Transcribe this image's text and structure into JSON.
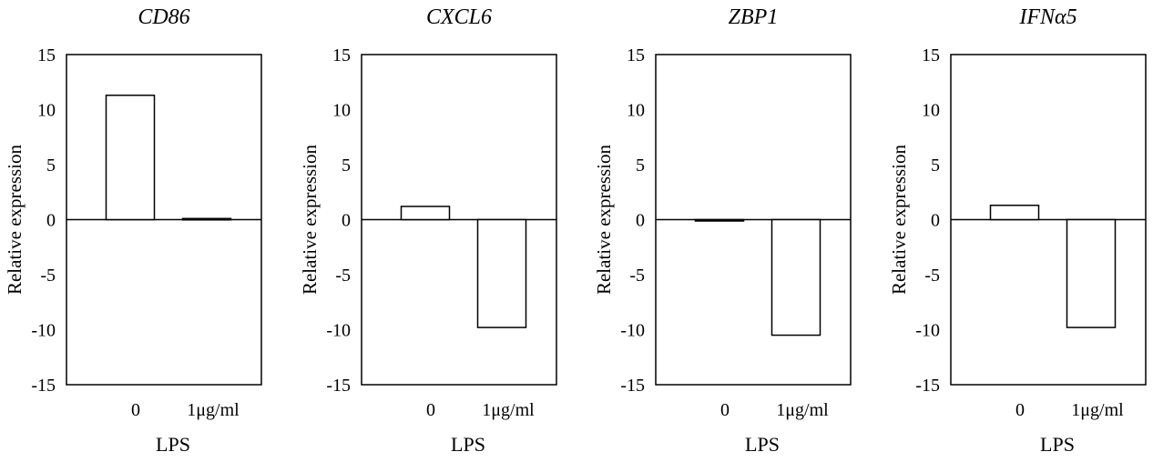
{
  "chart_data": [
    {
      "type": "bar",
      "title": "CD86",
      "xlabel": "LPS",
      "ylabel": "Relative expression",
      "ylim": [
        -15,
        15
      ],
      "yticks": [
        15,
        10,
        5,
        0,
        -5,
        -10,
        -15
      ],
      "ytick_labels": [
        "15",
        "10",
        "5",
        "0",
        "-5",
        "-10",
        "-15"
      ],
      "categories": [
        "0",
        "1μg/ml"
      ],
      "values": [
        11.3,
        0.1
      ],
      "grid": false
    },
    {
      "type": "bar",
      "title": "CXCL6",
      "xlabel": "LPS",
      "ylabel": "Relative expression",
      "ylim": [
        -15,
        15
      ],
      "yticks": [
        15,
        10,
        5,
        0,
        -5,
        -10,
        -15
      ],
      "ytick_labels": [
        "15",
        "10",
        "5",
        "0",
        "-5",
        "-10",
        "-15"
      ],
      "categories": [
        "0",
        "1μg/ml"
      ],
      "values": [
        1.2,
        -9.8
      ],
      "grid": false
    },
    {
      "type": "bar",
      "title": "ZBP1",
      "xlabel": "LPS",
      "ylabel": "Relative expression",
      "ylim": [
        -15,
        15
      ],
      "yticks": [
        15,
        10,
        5,
        0,
        -5,
        -10,
        -15
      ],
      "ytick_labels": [
        "15",
        "10",
        "5",
        "0",
        "-5",
        "-10",
        "-15"
      ],
      "categories": [
        "0",
        "1μg/ml"
      ],
      "values": [
        -0.1,
        -10.5
      ],
      "grid": false
    },
    {
      "type": "bar",
      "title": "IFNα5",
      "xlabel": "LPS",
      "ylabel": "Relative expression",
      "ylim": [
        -15,
        15
      ],
      "yticks": [
        15,
        10,
        5,
        0,
        -5,
        -10,
        -15
      ],
      "ytick_labels": [
        "15",
        "10",
        "5",
        "0",
        "-5",
        "-10",
        "-15"
      ],
      "categories": [
        "0",
        "1μg/ml"
      ],
      "values": [
        1.3,
        -9.8
      ],
      "grid": false
    }
  ]
}
